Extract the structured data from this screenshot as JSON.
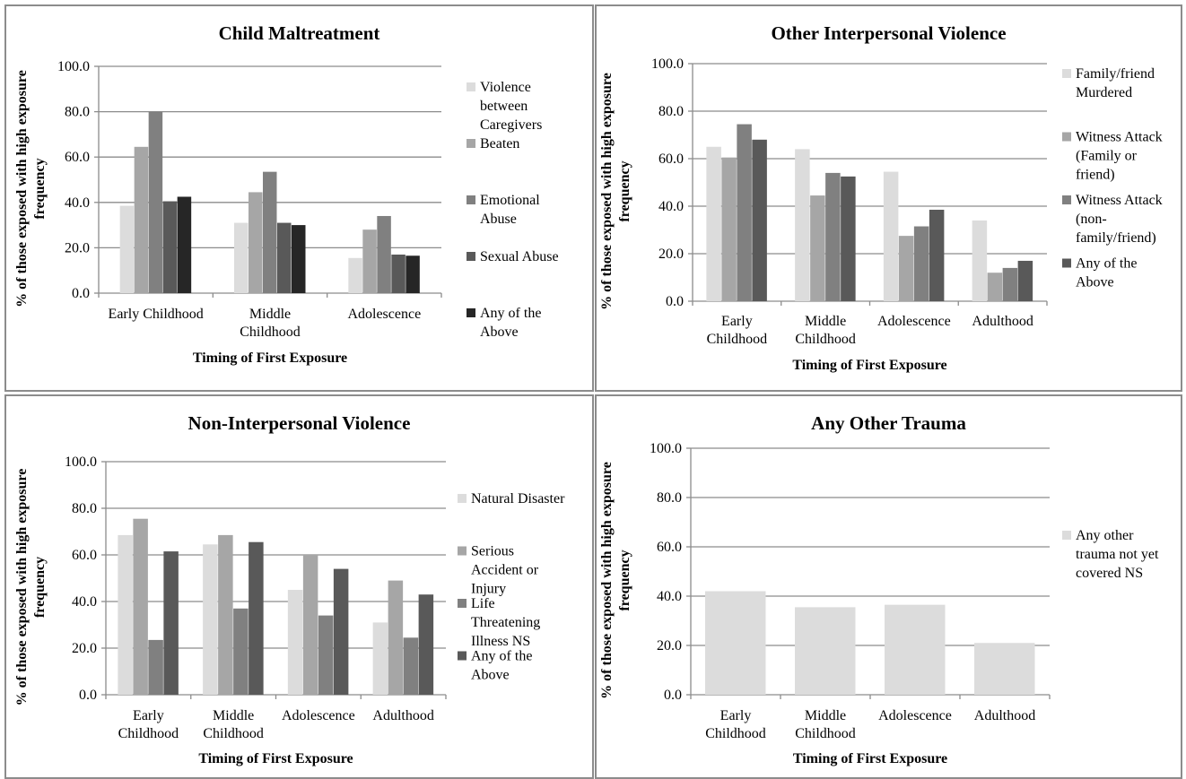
{
  "chart_data": [
    {
      "type": "bar",
      "title": "Child Maltreatment",
      "xlabel": "Timing of First Exposure",
      "ylabel": "% of those exposed with high exposure frequency",
      "ylim": [
        0,
        100
      ],
      "yticks": [
        "0.0",
        "20.0",
        "40.0",
        "60.0",
        "80.0",
        "100.0"
      ],
      "grid": true,
      "legend_position": "right",
      "categories": [
        [
          "Early Childhood"
        ],
        [
          "Middle",
          "Childhood"
        ],
        [
          "Adolescence"
        ]
      ],
      "series": [
        {
          "name": "Violence between Caregivers",
          "legend_lines": [
            "Violence",
            "between",
            "Caregivers"
          ],
          "color": "#dcdcdc",
          "values": [
            38.5,
            31.0,
            15.5
          ]
        },
        {
          "name": "Beaten",
          "legend_lines": [
            "Beaten"
          ],
          "color": "#a6a6a6",
          "values": [
            64.5,
            44.5,
            28.0
          ]
        },
        {
          "name": "Emotional Abuse",
          "legend_lines": [
            "Emotional",
            "Abuse"
          ],
          "color": "#808080",
          "values": [
            80.0,
            53.5,
            34.0
          ]
        },
        {
          "name": "Sexual Abuse",
          "legend_lines": [
            "Sexual Abuse"
          ],
          "color": "#595959",
          "values": [
            40.5,
            31.0,
            17.0
          ]
        },
        {
          "name": "Any of the Above",
          "legend_lines": [
            "Any of the",
            "Above"
          ],
          "color": "#262626",
          "values": [
            42.5,
            30.0,
            16.5
          ]
        }
      ]
    },
    {
      "type": "bar",
      "title": "Other Interpersonal Violence",
      "xlabel": "Timing of First Exposure",
      "ylabel": "% of those exposed with high exposure frequency",
      "ylim": [
        0,
        100
      ],
      "yticks": [
        "0.0",
        "20.0",
        "40.0",
        "60.0",
        "80.0",
        "100.0"
      ],
      "grid": true,
      "legend_position": "right",
      "categories": [
        [
          "Early",
          "Childhood"
        ],
        [
          "Middle",
          "Childhood"
        ],
        [
          "Adolescence"
        ],
        [
          "Adulthood"
        ]
      ],
      "series": [
        {
          "name": "Family/friend Murdered",
          "legend_lines": [
            "Family/friend",
            "Murdered"
          ],
          "color": "#dcdcdc",
          "values": [
            65.0,
            64.0,
            54.5,
            34.0
          ]
        },
        {
          "name": "Witness Attack (Family or friend)",
          "legend_lines": [
            "Witness Attack",
            "(Family or",
            "friend)"
          ],
          "color": "#a6a6a6",
          "values": [
            60.5,
            44.5,
            27.5,
            12.0
          ]
        },
        {
          "name": "Witness Attack (non-family/friend)",
          "legend_lines": [
            "Witness Attack",
            "(non-",
            "family/friend)"
          ],
          "color": "#808080",
          "values": [
            74.5,
            54.0,
            31.5,
            14.0
          ]
        },
        {
          "name": "Any of the Above",
          "legend_lines": [
            "Any of the",
            "Above"
          ],
          "color": "#595959",
          "values": [
            68.0,
            52.5,
            38.5,
            17.0
          ]
        }
      ]
    },
    {
      "type": "bar",
      "title": "Non-Interpersonal Violence",
      "xlabel": "Timing of First Exposure",
      "ylabel": "% of those exposed with high exposure frequency",
      "ylim": [
        0,
        100
      ],
      "yticks": [
        "0.0",
        "20.0",
        "40.0",
        "60.0",
        "80.0",
        "100.0"
      ],
      "grid": true,
      "legend_position": "right",
      "categories": [
        [
          "Early",
          "Childhood"
        ],
        [
          "Middle",
          "Childhood"
        ],
        [
          "Adolescence"
        ],
        [
          "Adulthood"
        ]
      ],
      "series": [
        {
          "name": "Natural Disaster",
          "legend_lines": [
            "Natural Disaster"
          ],
          "color": "#dcdcdc",
          "values": [
            68.5,
            64.5,
            45.0,
            31.0
          ]
        },
        {
          "name": "Serious Accident or Injury",
          "legend_lines": [
            "Serious",
            "Accident or",
            "Injury"
          ],
          "color": "#a6a6a6",
          "values": [
            75.5,
            68.5,
            60.0,
            49.0
          ]
        },
        {
          "name": "Life Threatening Illness NS",
          "legend_lines": [
            "Life",
            "Threatening",
            "Illness NS"
          ],
          "color": "#808080",
          "values": [
            23.5,
            37.0,
            34.0,
            24.5
          ]
        },
        {
          "name": "Any of the Above",
          "legend_lines": [
            "Any of the",
            "Above"
          ],
          "color": "#595959",
          "values": [
            61.5,
            65.5,
            54.0,
            43.0
          ]
        }
      ]
    },
    {
      "type": "bar",
      "title": "Any Other Trauma",
      "xlabel": "Timing of First Exposure",
      "ylabel": "% of those exposed with high exposure frequency",
      "ylim": [
        0,
        100
      ],
      "yticks": [
        "0.0",
        "20.0",
        "40.0",
        "60.0",
        "80.0",
        "100.0"
      ],
      "grid": true,
      "legend_position": "right",
      "categories": [
        [
          "Early",
          "Childhood"
        ],
        [
          "Middle",
          "Childhood"
        ],
        [
          "Adolescence"
        ],
        [
          "Adulthood"
        ]
      ],
      "series": [
        {
          "name": "Any other trauma not yet covered NS",
          "legend_lines": [
            "Any other",
            "trauma not yet",
            "covered NS"
          ],
          "color": "#dcdcdc",
          "values": [
            42.0,
            35.5,
            36.5,
            21.0
          ]
        }
      ]
    }
  ]
}
